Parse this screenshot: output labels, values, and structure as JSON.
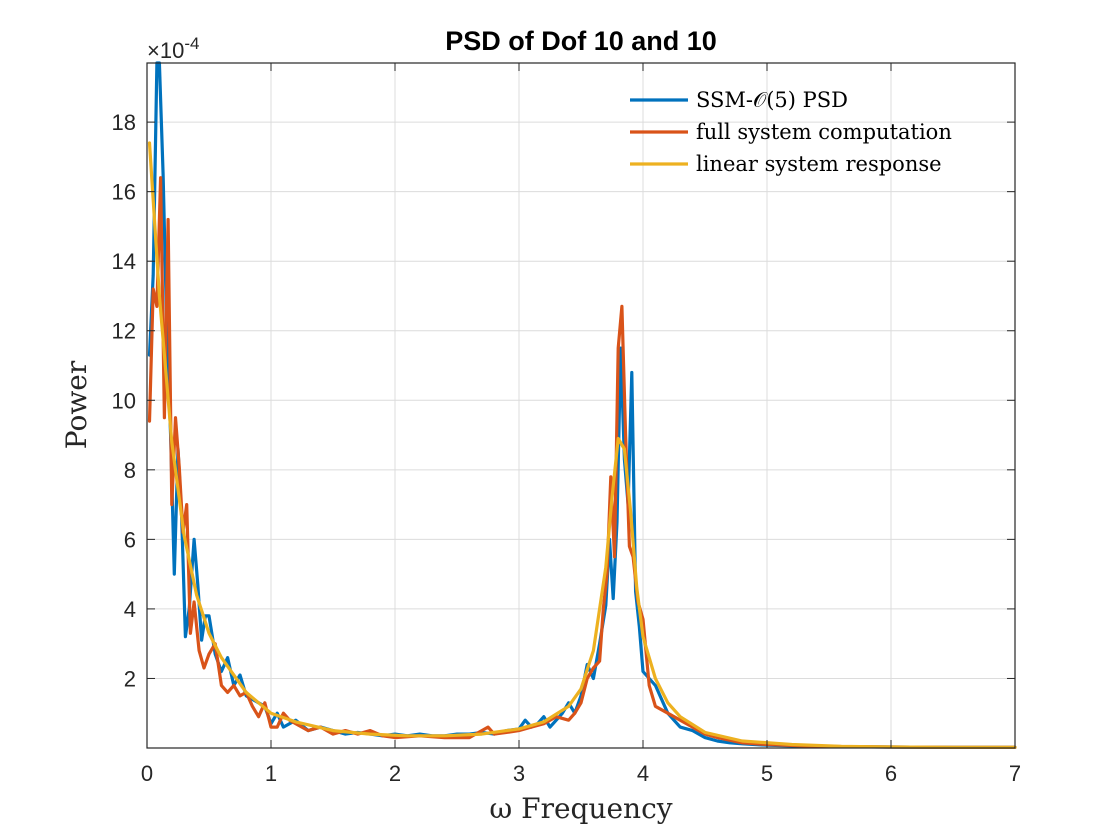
{
  "chart_data": {
    "type": "line",
    "title": "PSD of Dof 10 and 10",
    "xlabel": "ω Frequency",
    "ylabel": "Power",
    "y_exponent_label": "×10",
    "y_exponent_power": "-4",
    "xlim": [
      0,
      7
    ],
    "ylim": [
      0,
      19.7
    ],
    "xticks": [
      0,
      1,
      2,
      3,
      4,
      5,
      6,
      7
    ],
    "yticks": [
      2,
      4,
      6,
      8,
      10,
      12,
      14,
      16,
      18
    ],
    "grid": true,
    "legend_position": "top-right",
    "series": [
      {
        "name": "SSM-𝒪(5) PSD",
        "color": "#0072BD",
        "x": [
          0.02,
          0.05,
          0.08,
          0.1,
          0.13,
          0.16,
          0.19,
          0.22,
          0.25,
          0.28,
          0.31,
          0.34,
          0.38,
          0.41,
          0.44,
          0.47,
          0.5,
          0.55,
          0.6,
          0.65,
          0.7,
          0.75,
          0.8,
          0.85,
          0.9,
          0.95,
          1.0,
          1.05,
          1.1,
          1.2,
          1.3,
          1.4,
          1.5,
          1.6,
          1.7,
          1.8,
          1.9,
          2.0,
          2.1,
          2.2,
          2.3,
          2.4,
          2.5,
          2.6,
          2.7,
          2.8,
          2.9,
          3.0,
          3.05,
          3.1,
          3.15,
          3.2,
          3.25,
          3.3,
          3.35,
          3.4,
          3.45,
          3.5,
          3.55,
          3.6,
          3.65,
          3.7,
          3.73,
          3.76,
          3.79,
          3.82,
          3.85,
          3.88,
          3.91,
          3.94,
          3.97,
          4.0,
          4.05,
          4.1,
          4.15,
          4.2,
          4.25,
          4.3,
          4.4,
          4.5,
          4.6,
          4.7,
          4.8,
          5.0,
          5.2,
          5.5,
          6.0,
          6.5,
          7.0
        ],
        "values": [
          11.3,
          13.6,
          19.7,
          19.7,
          16.5,
          12.0,
          9.0,
          5.0,
          8.6,
          6.6,
          3.2,
          4.0,
          6.0,
          4.7,
          3.1,
          3.8,
          3.8,
          2.7,
          2.2,
          2.6,
          1.8,
          2.1,
          1.5,
          1.4,
          1.3,
          1.2,
          0.7,
          1.0,
          0.6,
          0.8,
          0.5,
          0.6,
          0.5,
          0.4,
          0.45,
          0.4,
          0.35,
          0.4,
          0.35,
          0.4,
          0.35,
          0.35,
          0.4,
          0.4,
          0.45,
          0.4,
          0.5,
          0.55,
          0.8,
          0.6,
          0.7,
          0.9,
          0.6,
          0.8,
          1.0,
          1.3,
          1.0,
          1.5,
          2.4,
          2.0,
          3.0,
          4.1,
          6.0,
          4.3,
          6.5,
          11.5,
          8.3,
          7.0,
          10.8,
          4.5,
          3.5,
          2.2,
          2.0,
          1.8,
          1.4,
          1.0,
          0.8,
          0.6,
          0.5,
          0.3,
          0.2,
          0.15,
          0.12,
          0.08,
          0.06,
          0.04,
          0.03,
          0.02,
          0.02
        ]
      },
      {
        "name": "full system computation",
        "color": "#D95319",
        "x": [
          0.02,
          0.05,
          0.08,
          0.11,
          0.14,
          0.17,
          0.2,
          0.23,
          0.26,
          0.29,
          0.32,
          0.35,
          0.38,
          0.42,
          0.46,
          0.5,
          0.55,
          0.6,
          0.65,
          0.7,
          0.75,
          0.8,
          0.85,
          0.9,
          0.95,
          1.0,
          1.05,
          1.1,
          1.15,
          1.2,
          1.3,
          1.4,
          1.5,
          1.6,
          1.7,
          1.8,
          1.9,
          2.0,
          2.2,
          2.4,
          2.6,
          2.75,
          2.8,
          2.9,
          3.0,
          3.1,
          3.2,
          3.3,
          3.4,
          3.45,
          3.5,
          3.55,
          3.6,
          3.65,
          3.68,
          3.71,
          3.74,
          3.77,
          3.8,
          3.83,
          3.86,
          3.89,
          3.92,
          3.96,
          4.0,
          4.05,
          4.1,
          4.2,
          4.3,
          4.4,
          4.5,
          4.6,
          4.8,
          5.0,
          5.3,
          5.6,
          6.0,
          6.5,
          7.0
        ],
        "values": [
          9.4,
          13.2,
          12.7,
          16.4,
          9.5,
          15.2,
          7.0,
          9.5,
          8.1,
          6.2,
          7.0,
          3.3,
          4.2,
          2.8,
          2.3,
          2.7,
          3.0,
          1.8,
          1.6,
          1.8,
          1.5,
          1.6,
          1.2,
          0.9,
          1.3,
          0.6,
          0.6,
          1.0,
          0.8,
          0.7,
          0.5,
          0.6,
          0.4,
          0.5,
          0.4,
          0.5,
          0.35,
          0.3,
          0.35,
          0.3,
          0.3,
          0.6,
          0.4,
          0.45,
          0.5,
          0.6,
          0.7,
          0.9,
          0.8,
          1.0,
          1.3,
          2.0,
          2.3,
          2.5,
          4.0,
          5.0,
          7.8,
          5.5,
          11.5,
          12.7,
          9.0,
          5.8,
          5.5,
          4.2,
          3.7,
          1.8,
          1.2,
          1.0,
          0.8,
          0.6,
          0.4,
          0.3,
          0.15,
          0.1,
          0.06,
          0.04,
          0.03,
          0.02,
          0.02
        ]
      },
      {
        "name": "linear system response",
        "color": "#EDB120",
        "x": [
          0.02,
          0.1,
          0.2,
          0.3,
          0.4,
          0.5,
          0.6,
          0.8,
          1.0,
          1.2,
          1.5,
          1.8,
          2.1,
          2.4,
          2.7,
          3.0,
          3.2,
          3.4,
          3.5,
          3.6,
          3.7,
          3.75,
          3.8,
          3.85,
          3.9,
          3.95,
          4.0,
          4.1,
          4.2,
          4.3,
          4.5,
          4.8,
          5.2,
          5.6,
          6.0,
          6.5,
          7.0
        ],
        "values": [
          17.4,
          13.0,
          8.8,
          6.1,
          4.4,
          3.3,
          2.6,
          1.6,
          1.0,
          0.75,
          0.5,
          0.4,
          0.35,
          0.35,
          0.4,
          0.55,
          0.75,
          1.2,
          1.7,
          2.8,
          5.2,
          7.2,
          8.9,
          8.6,
          6.8,
          4.6,
          3.2,
          2.0,
          1.3,
          0.9,
          0.45,
          0.2,
          0.1,
          0.05,
          0.03,
          0.02,
          0.02
        ]
      }
    ]
  }
}
